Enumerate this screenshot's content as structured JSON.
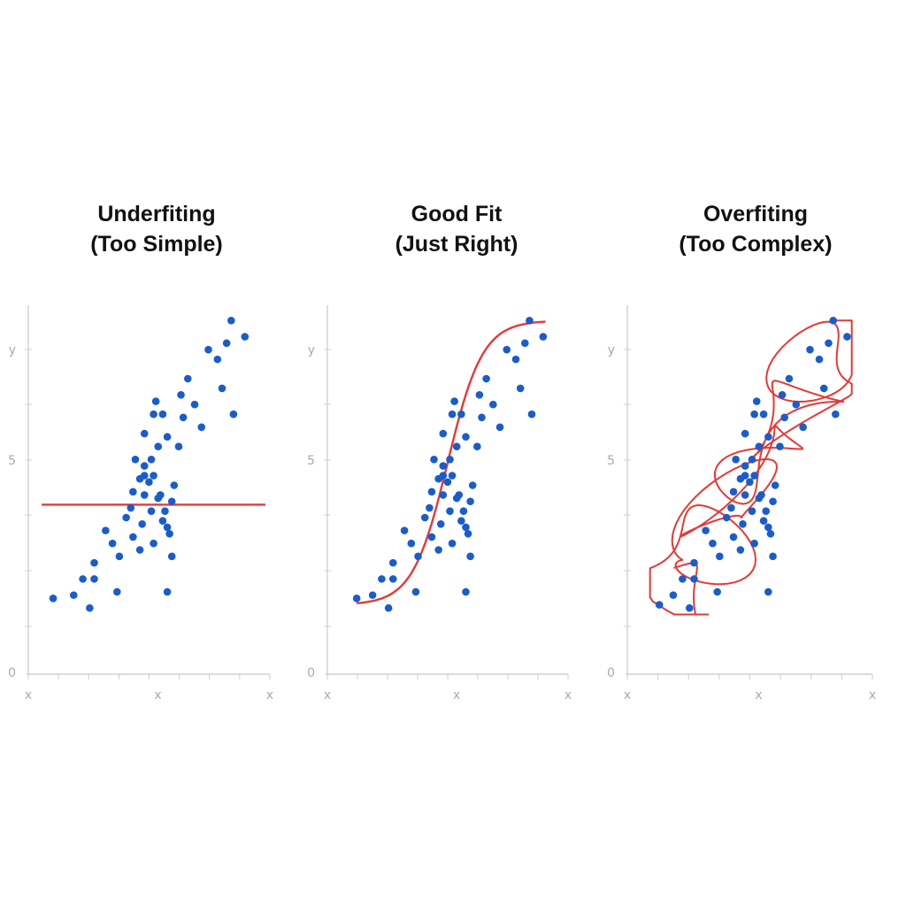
{
  "chart_data": [
    {
      "type": "scatter",
      "title": "Underfiting",
      "subtitle": "(Too Simple)",
      "y_tick_labels": [
        "y",
        "5",
        "0"
      ],
      "x_tick_labels": [
        "x",
        "x",
        "x"
      ],
      "fit_line": "horizontal",
      "colors": {
        "points": "#1a5ccc",
        "fit": "#e53935"
      },
      "points": [
        [
          0.7,
          1.8
        ],
        [
          1.6,
          1.9
        ],
        [
          2.0,
          2.4
        ],
        [
          2.3,
          1.5
        ],
        [
          2.5,
          2.9
        ],
        [
          2.5,
          2.4
        ],
        [
          3.0,
          3.9
        ],
        [
          3.5,
          2.0
        ],
        [
          3.3,
          3.5
        ],
        [
          3.6,
          3.1
        ],
        [
          3.9,
          4.3
        ],
        [
          4.1,
          4.6
        ],
        [
          4.2,
          3.7
        ],
        [
          4.3,
          6.1
        ],
        [
          4.5,
          3.3
        ],
        [
          4.2,
          5.1
        ],
        [
          4.7,
          5.6
        ],
        [
          4.5,
          5.5
        ],
        [
          4.7,
          5.0
        ],
        [
          4.9,
          5.4
        ],
        [
          5.1,
          5.6
        ],
        [
          4.7,
          5.9
        ],
        [
          5.0,
          6.1
        ],
        [
          4.7,
          6.9
        ],
        [
          5.3,
          6.5
        ],
        [
          5.1,
          7.5
        ],
        [
          5.5,
          7.5
        ],
        [
          5.7,
          6.8
        ],
        [
          5.2,
          7.9
        ],
        [
          5.0,
          4.5
        ],
        [
          5.1,
          3.5
        ],
        [
          5.3,
          4.9
        ],
        [
          5.5,
          4.2
        ],
        [
          5.4,
          5.0
        ],
        [
          5.6,
          4.5
        ],
        [
          5.8,
          3.8
        ],
        [
          6.0,
          5.3
        ],
        [
          5.7,
          4.0
        ],
        [
          5.9,
          4.8
        ],
        [
          6.2,
          6.5
        ],
        [
          6.3,
          8.1
        ],
        [
          6.6,
          8.6
        ],
        [
          6.9,
          7.8
        ],
        [
          7.2,
          7.1
        ],
        [
          6.4,
          7.4
        ],
        [
          7.5,
          9.5
        ],
        [
          7.9,
          9.2
        ],
        [
          8.1,
          8.3
        ],
        [
          8.3,
          9.7
        ],
        [
          8.5,
          10.4
        ],
        [
          9.1,
          9.9
        ],
        [
          8.6,
          7.5
        ],
        [
          5.7,
          2.0
        ],
        [
          5.9,
          3.1
        ],
        [
          4.6,
          4.1
        ]
      ]
    },
    {
      "type": "scatter",
      "title": "Good Fit",
      "subtitle": "(Just Right)",
      "y_tick_labels": [
        "y",
        "5",
        "0"
      ],
      "x_tick_labels": [
        "x",
        "x",
        "x"
      ],
      "fit_line": "sigmoid",
      "colors": {
        "points": "#1a5ccc",
        "fit": "#e53935"
      },
      "points": [
        [
          0.9,
          1.8
        ],
        [
          1.6,
          1.9
        ],
        [
          2.0,
          2.4
        ],
        [
          2.3,
          1.5
        ],
        [
          2.5,
          2.9
        ],
        [
          2.5,
          2.4
        ],
        [
          3.0,
          3.9
        ],
        [
          3.5,
          2.0
        ],
        [
          3.3,
          3.5
        ],
        [
          3.6,
          3.1
        ],
        [
          3.9,
          4.3
        ],
        [
          4.1,
          4.6
        ],
        [
          4.2,
          3.7
        ],
        [
          4.3,
          6.1
        ],
        [
          4.5,
          3.3
        ],
        [
          4.2,
          5.1
        ],
        [
          4.7,
          5.6
        ],
        [
          4.5,
          5.5
        ],
        [
          4.7,
          5.0
        ],
        [
          4.9,
          5.4
        ],
        [
          5.1,
          5.6
        ],
        [
          4.7,
          5.9
        ],
        [
          5.0,
          6.1
        ],
        [
          4.7,
          6.9
        ],
        [
          5.3,
          6.5
        ],
        [
          5.1,
          7.5
        ],
        [
          5.5,
          7.5
        ],
        [
          5.7,
          6.8
        ],
        [
          5.2,
          7.9
        ],
        [
          5.0,
          4.5
        ],
        [
          5.1,
          3.5
        ],
        [
          5.3,
          4.9
        ],
        [
          5.5,
          4.2
        ],
        [
          5.4,
          5.0
        ],
        [
          5.6,
          4.5
        ],
        [
          5.8,
          3.8
        ],
        [
          6.0,
          5.3
        ],
        [
          5.7,
          4.0
        ],
        [
          5.9,
          4.8
        ],
        [
          6.2,
          6.5
        ],
        [
          6.3,
          8.1
        ],
        [
          6.6,
          8.6
        ],
        [
          6.9,
          7.8
        ],
        [
          7.2,
          7.1
        ],
        [
          6.4,
          7.4
        ],
        [
          7.5,
          9.5
        ],
        [
          7.9,
          9.2
        ],
        [
          8.1,
          8.3
        ],
        [
          8.3,
          9.7
        ],
        [
          8.5,
          10.4
        ],
        [
          9.1,
          9.9
        ],
        [
          8.6,
          7.5
        ],
        [
          5.7,
          2.0
        ],
        [
          5.9,
          3.1
        ],
        [
          4.6,
          4.1
        ]
      ]
    },
    {
      "type": "scatter",
      "title": "Overfiting",
      "subtitle": "(Too Complex)",
      "y_tick_labels": [
        "y",
        "5",
        "0"
      ],
      "x_tick_labels": [
        "x",
        "x",
        "x"
      ],
      "fit_line": "wiggly",
      "colors": {
        "points": "#1a5ccc",
        "fit": "#e53935"
      },
      "points": [
        [
          1.0,
          1.6
        ],
        [
          1.6,
          1.9
        ],
        [
          2.0,
          2.4
        ],
        [
          2.3,
          1.5
        ],
        [
          2.5,
          2.9
        ],
        [
          2.5,
          2.4
        ],
        [
          3.0,
          3.9
        ],
        [
          3.5,
          2.0
        ],
        [
          3.3,
          3.5
        ],
        [
          3.6,
          3.1
        ],
        [
          3.9,
          4.3
        ],
        [
          4.1,
          4.6
        ],
        [
          4.2,
          3.7
        ],
        [
          4.3,
          6.1
        ],
        [
          4.5,
          3.3
        ],
        [
          4.2,
          5.1
        ],
        [
          4.7,
          5.6
        ],
        [
          4.5,
          5.5
        ],
        [
          4.7,
          5.0
        ],
        [
          4.9,
          5.4
        ],
        [
          5.1,
          5.6
        ],
        [
          4.7,
          5.9
        ],
        [
          5.0,
          6.1
        ],
        [
          4.7,
          6.9
        ],
        [
          5.3,
          6.5
        ],
        [
          5.1,
          7.5
        ],
        [
          5.5,
          7.5
        ],
        [
          5.7,
          6.8
        ],
        [
          5.2,
          7.9
        ],
        [
          5.0,
          4.5
        ],
        [
          5.1,
          3.5
        ],
        [
          5.3,
          4.9
        ],
        [
          5.5,
          4.2
        ],
        [
          5.4,
          5.0
        ],
        [
          5.6,
          4.5
        ],
        [
          5.8,
          3.8
        ],
        [
          6.0,
          5.3
        ],
        [
          5.7,
          4.0
        ],
        [
          5.9,
          4.8
        ],
        [
          6.2,
          6.5
        ],
        [
          6.3,
          8.1
        ],
        [
          6.6,
          8.6
        ],
        [
          6.9,
          7.8
        ],
        [
          7.2,
          7.1
        ],
        [
          6.4,
          7.4
        ],
        [
          7.5,
          9.5
        ],
        [
          7.9,
          9.2
        ],
        [
          8.1,
          8.3
        ],
        [
          8.3,
          9.7
        ],
        [
          8.5,
          10.4
        ],
        [
          9.1,
          9.9
        ],
        [
          8.6,
          7.5
        ],
        [
          5.7,
          2.0
        ],
        [
          5.9,
          3.1
        ],
        [
          4.6,
          4.1
        ]
      ]
    }
  ]
}
